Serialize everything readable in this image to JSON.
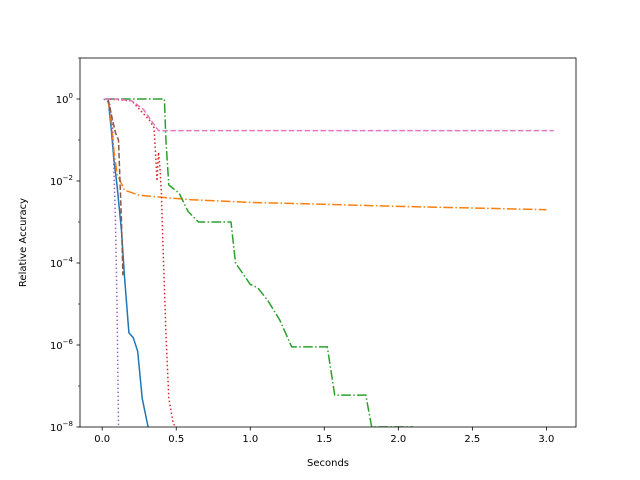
{
  "chart_data": {
    "type": "line",
    "title": "",
    "xlabel": "Seconds",
    "ylabel": "Relative Accuracy",
    "xlim": [
      -0.15,
      3.2
    ],
    "ylim": [
      1e-08,
      10
    ],
    "yscale": "log",
    "grid": false,
    "legend": "none",
    "xticks": [
      0.0,
      0.5,
      1.0,
      1.5,
      2.0,
      2.5,
      3.0
    ],
    "xtick_labels": [
      "0.0",
      "0.5",
      "1.0",
      "1.5",
      "2.0",
      "2.5",
      "3.0"
    ],
    "yticks": [
      1e-08,
      1e-06,
      0.0001,
      0.01,
      1
    ],
    "ytick_labels": [
      {
        "base": "10",
        "exp": "−8"
      },
      {
        "base": "10",
        "exp": "−6"
      },
      {
        "base": "10",
        "exp": "−4"
      },
      {
        "base": "10",
        "exp": "−2"
      },
      {
        "base": "10",
        "exp": "0"
      }
    ],
    "series": [
      {
        "color": "#1f77b4",
        "dash": "solid",
        "points": [
          [
            0.04,
            1.0
          ],
          [
            0.06,
            0.2
          ],
          [
            0.08,
            0.03
          ],
          [
            0.1,
            0.008
          ],
          [
            0.13,
            0.0006
          ],
          [
            0.15,
            5e-05
          ],
          [
            0.18,
            2e-06
          ],
          [
            0.21,
            1.5e-06
          ],
          [
            0.24,
            7e-07
          ],
          [
            0.27,
            5e-08
          ],
          [
            0.31,
            1e-08
          ]
        ]
      },
      {
        "color": "#ff7f0e",
        "dash": "dashdot",
        "points": [
          [
            0.04,
            1.0
          ],
          [
            0.06,
            0.3
          ],
          [
            0.08,
            0.05
          ],
          [
            0.1,
            0.015
          ],
          [
            0.15,
            0.006
          ],
          [
            0.25,
            0.0045
          ],
          [
            0.4,
            0.004
          ],
          [
            0.6,
            0.0035
          ],
          [
            1.0,
            0.003
          ],
          [
            1.5,
            0.0027
          ],
          [
            2.0,
            0.0024
          ],
          [
            2.5,
            0.0022
          ],
          [
            3.0,
            0.002
          ]
        ]
      },
      {
        "color": "#2ca02c",
        "dash": "dashdot",
        "points": [
          [
            0.02,
            1.0
          ],
          [
            0.42,
            1.0
          ],
          [
            0.43,
            0.1
          ],
          [
            0.45,
            0.008
          ],
          [
            0.52,
            0.005
          ],
          [
            0.58,
            0.0018
          ],
          [
            0.65,
            0.001
          ],
          [
            0.87,
            0.001
          ],
          [
            0.9,
            0.0001
          ],
          [
            1.0,
            3e-05
          ],
          [
            1.05,
            2.5e-05
          ],
          [
            1.12,
            1.2e-05
          ],
          [
            1.2,
            4e-06
          ],
          [
            1.28,
            9e-07
          ],
          [
            1.52,
            9e-07
          ],
          [
            1.57,
            6e-08
          ],
          [
            1.78,
            6e-08
          ],
          [
            1.82,
            1e-08
          ],
          [
            2.1,
            1e-08
          ]
        ]
      },
      {
        "color": "#d62728",
        "dash": "dotted",
        "points": [
          [
            0.05,
            1.0
          ],
          [
            0.2,
            0.9
          ],
          [
            0.32,
            0.3
          ],
          [
            0.35,
            0.2
          ],
          [
            0.36,
            0.05
          ],
          [
            0.37,
            0.01
          ],
          [
            0.38,
            0.05
          ],
          [
            0.39,
            0.02
          ],
          [
            0.4,
            0.005
          ],
          [
            0.41,
            0.0003
          ],
          [
            0.43,
            2e-06
          ],
          [
            0.45,
            5e-08
          ],
          [
            0.48,
            1.2e-08
          ],
          [
            0.5,
            1e-08
          ]
        ]
      },
      {
        "color": "#9467bd",
        "dash": "dotted",
        "points": [
          [
            0.01,
            1.0
          ],
          [
            0.05,
            0.8
          ],
          [
            0.07,
            0.2
          ],
          [
            0.09,
            0.001
          ],
          [
            0.1,
            1e-05
          ],
          [
            0.11,
            1e-08
          ]
        ]
      },
      {
        "color": "#8c564b",
        "dash": "dashed",
        "points": [
          [
            0.04,
            1.0
          ],
          [
            0.07,
            0.3
          ],
          [
            0.09,
            0.15
          ],
          [
            0.11,
            0.1
          ],
          [
            0.12,
            0.01
          ],
          [
            0.13,
            0.001
          ],
          [
            0.14,
            5e-05
          ]
        ]
      },
      {
        "color": "#e377c2",
        "dash": "dashed",
        "points": [
          [
            0.02,
            1.0
          ],
          [
            0.1,
            1.0
          ],
          [
            0.2,
            0.9
          ],
          [
            0.28,
            0.55
          ],
          [
            0.33,
            0.3
          ],
          [
            0.38,
            0.17
          ],
          [
            0.45,
            0.17
          ],
          [
            1.0,
            0.17
          ],
          [
            2.0,
            0.17
          ],
          [
            3.05,
            0.17
          ]
        ]
      }
    ]
  }
}
